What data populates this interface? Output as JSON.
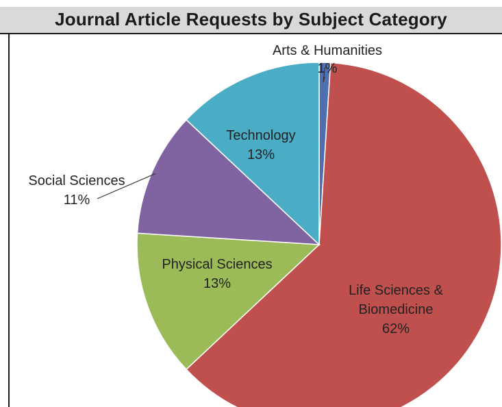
{
  "chart_data": {
    "type": "pie",
    "title": "Journal Article Requests by Subject Category",
    "slices": [
      {
        "name": "Arts & Humanities",
        "value": 1,
        "label": "1%",
        "color": "#4f6fb0"
      },
      {
        "name": "Life Sciences & Biomedicine",
        "value": 62,
        "label": "62%",
        "color": "#c0504d"
      },
      {
        "name": "Physical Sciences",
        "value": 13,
        "label": "13%",
        "color": "#9bbb59"
      },
      {
        "name": "Social Sciences",
        "value": 11,
        "label": "11%",
        "color": "#8064a2"
      },
      {
        "name": "Technology",
        "value": 13,
        "label": "13%",
        "color": "#4bacc6"
      }
    ],
    "start": "12 o'clock",
    "direction": "clockwise"
  }
}
